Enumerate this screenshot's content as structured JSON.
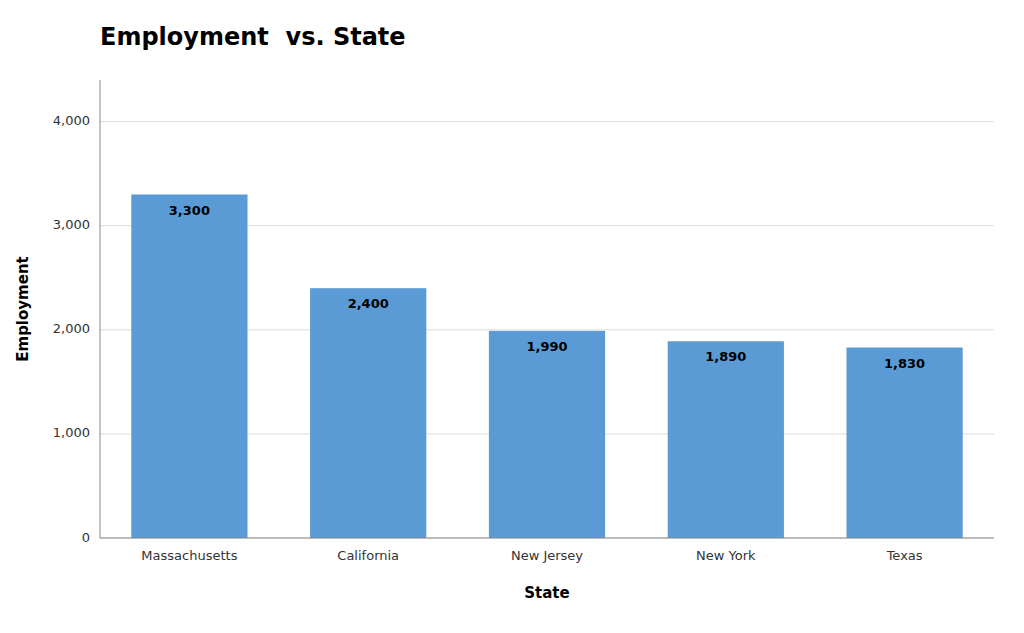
{
  "chart_data": {
    "type": "bar",
    "title": "Employment  vs. State",
    "xlabel": "State",
    "ylabel": "Employment",
    "categories": [
      "Massachusetts",
      "California",
      "New Jersey",
      "New York",
      "Texas"
    ],
    "values": [
      3300,
      2400,
      1990,
      1890,
      1830
    ],
    "value_labels": [
      "3,300",
      "2,400",
      "1,990",
      "1,890",
      "1,830"
    ],
    "data_labels": true,
    "color": "#5b9bd5",
    "ylim": [
      0,
      4400
    ],
    "yticks": [
      {
        "value": 0,
        "label": "0"
      },
      {
        "value": 1000,
        "label": "1,000"
      },
      {
        "value": 2000,
        "label": "2,000"
      },
      {
        "value": 3000,
        "label": "3,000"
      },
      {
        "value": 4000,
        "label": "4,000"
      }
    ],
    "grid": true
  }
}
